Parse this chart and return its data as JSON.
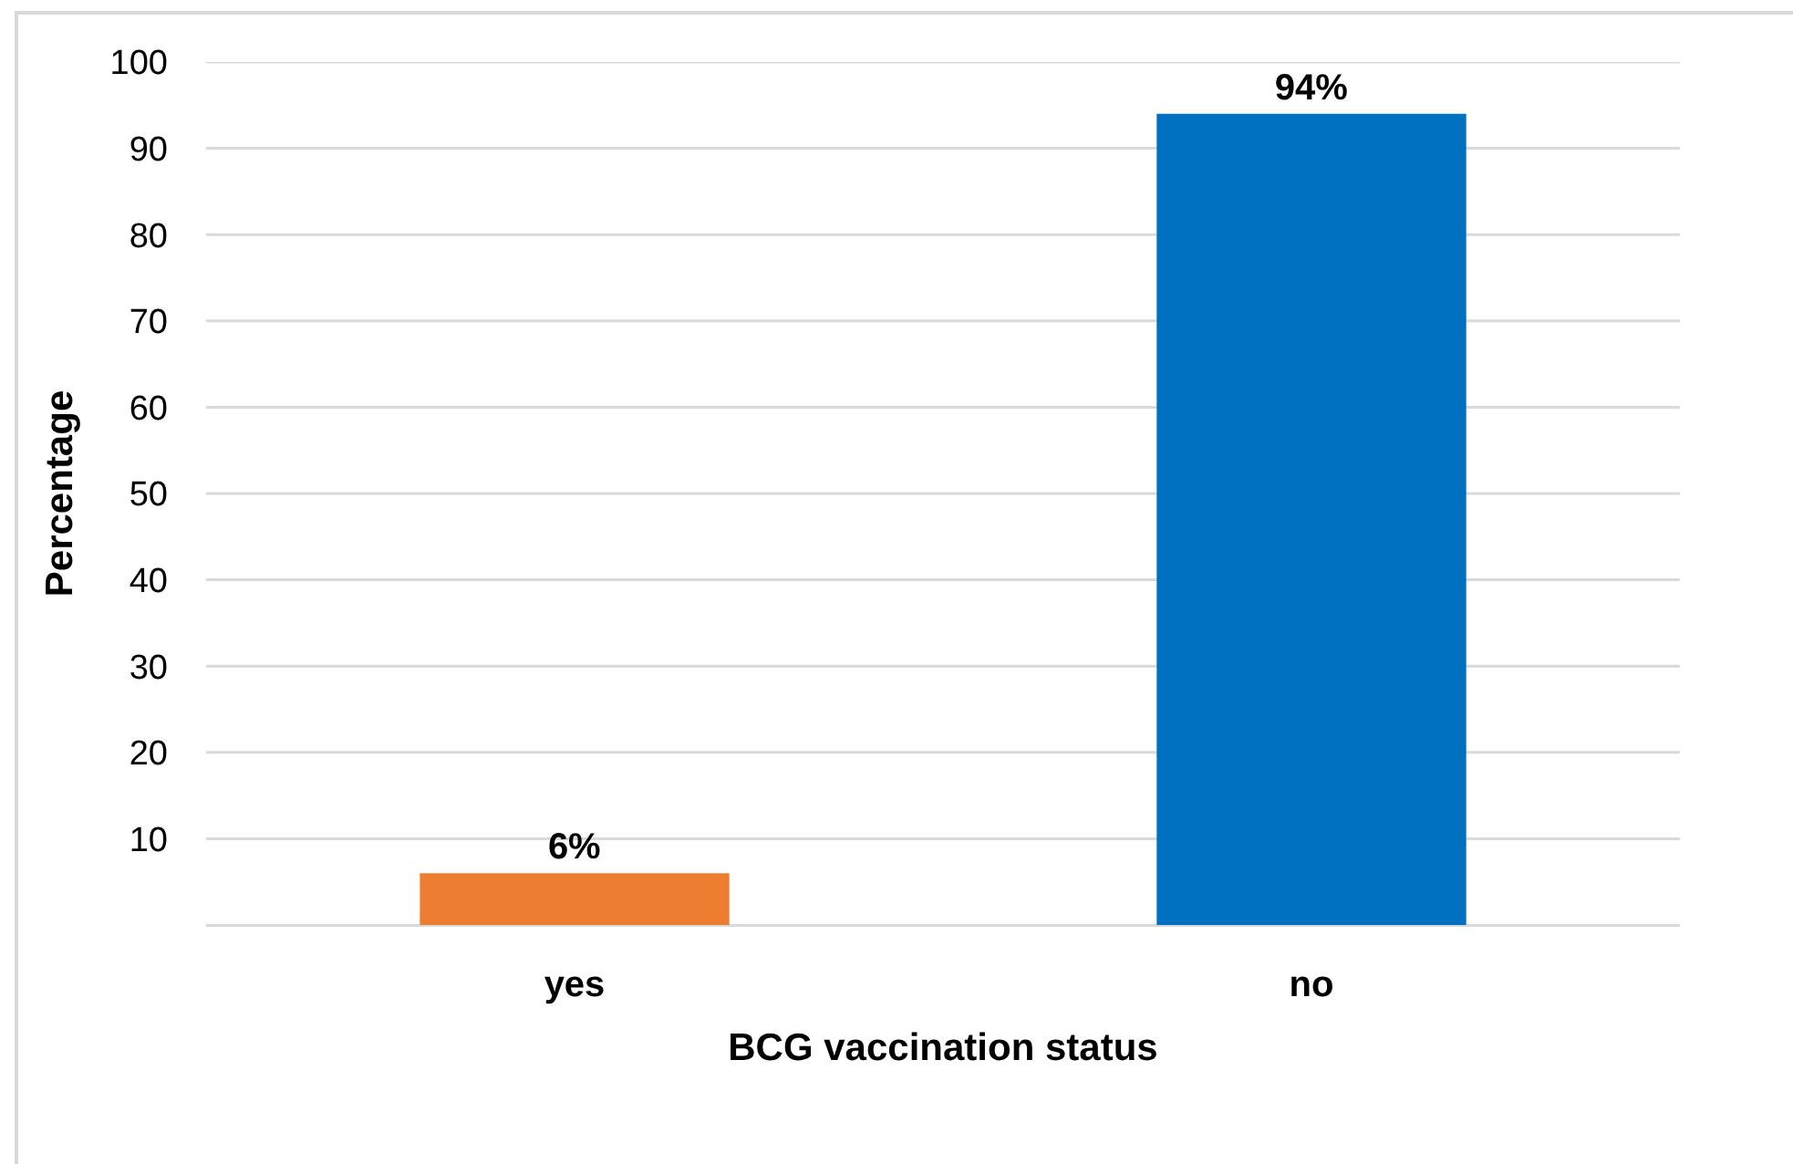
{
  "chart_data": {
    "type": "bar",
    "xlabel": "BCG vaccination status",
    "ylabel": "Percentage",
    "categories": [
      "yes",
      "no"
    ],
    "values": [
      6,
      94
    ],
    "colors": [
      "#ed7d31",
      "#0070c0"
    ],
    "value_labels": [
      "6%",
      "94%"
    ],
    "ylim": [
      0,
      100
    ],
    "yticks": [
      10,
      20,
      30,
      40,
      50,
      60,
      70,
      80,
      90,
      100
    ],
    "grid": "y"
  }
}
